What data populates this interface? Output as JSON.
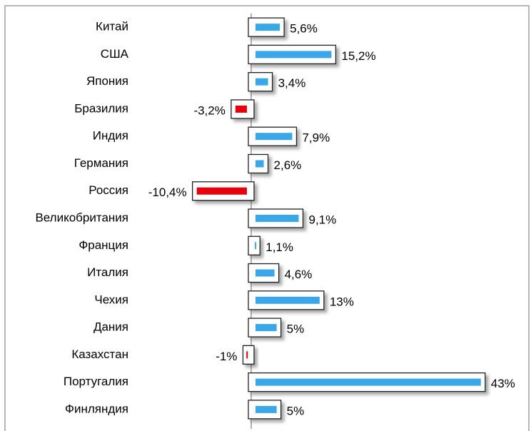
{
  "chart_data": {
    "type": "bar",
    "orientation": "horizontal",
    "categories": [
      "Китай",
      "США",
      "Япония",
      "Бразилия",
      "Индия",
      "Германия",
      "Россия",
      "Великобритания",
      "Франция",
      "Италия",
      "Чехия",
      "Дания",
      "Казахстан",
      "Португалия",
      "Финляндия"
    ],
    "values": [
      5.6,
      15.2,
      3.4,
      -3.2,
      7.9,
      2.6,
      -10.4,
      9.1,
      1.1,
      4.6,
      13,
      5,
      -1,
      43,
      5
    ],
    "value_labels": [
      "5,6%",
      "15,2%",
      "3,4%",
      "-3,2%",
      "7,9%",
      "2,6%",
      "-10,4%",
      "9,1%",
      "1,1%",
      "4,6%",
      "13%",
      "5%",
      "-1%",
      "43%",
      "5%"
    ],
    "color": "#3aa8e8",
    "negative_color": "#e8000b",
    "xlim": [
      -12,
      44
    ]
  }
}
